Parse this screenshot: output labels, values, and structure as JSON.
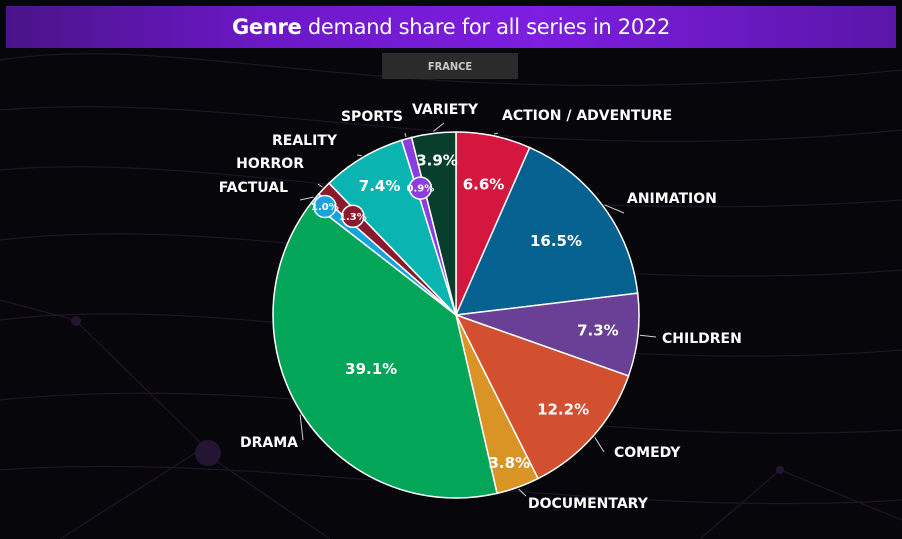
{
  "header": {
    "title_bold": "Genre",
    "title_rest": " demand share for all series in 2022",
    "region": "FRANCE"
  },
  "chart_data": {
    "type": "pie",
    "title": "Genre demand share for all series in 2022",
    "subtitle": "FRANCE",
    "start_angle_deg": 0,
    "direction": "clockwise",
    "slices": [
      {
        "label": "ACTION / ADVENTURE",
        "value": 6.6,
        "display": "6.6%",
        "color": "#d5173f"
      },
      {
        "label": "ANIMATION",
        "value": 16.5,
        "display": "16.5%",
        "color": "#05618f"
      },
      {
        "label": "CHILDREN",
        "value": 7.3,
        "display": "7.3%",
        "color": "#6a3f96"
      },
      {
        "label": "COMEDY",
        "value": 12.2,
        "display": "12.2%",
        "color": "#d25030"
      },
      {
        "label": "DOCUMENTARY",
        "value": 3.8,
        "display": "3.8%",
        "color": "#d99425"
      },
      {
        "label": "DRAMA",
        "value": 39.1,
        "display": "39.1%",
        "color": "#03a558"
      },
      {
        "label": "FACTUAL",
        "value": 1.0,
        "display": "1.0%",
        "color": "#18a3dd"
      },
      {
        "label": "HORROR",
        "value": 1.3,
        "display": "1.3%",
        "color": "#8a1b2e"
      },
      {
        "label": "REALITY",
        "value": 7.4,
        "display": "7.4%",
        "color": "#0ab5b1"
      },
      {
        "label": "SPORTS",
        "value": 0.9,
        "display": "0.9%",
        "color": "#8b3de0"
      },
      {
        "label": "VARIETY",
        "value": 3.9,
        "display": "3.9%",
        "color": "#083f2c"
      }
    ]
  }
}
